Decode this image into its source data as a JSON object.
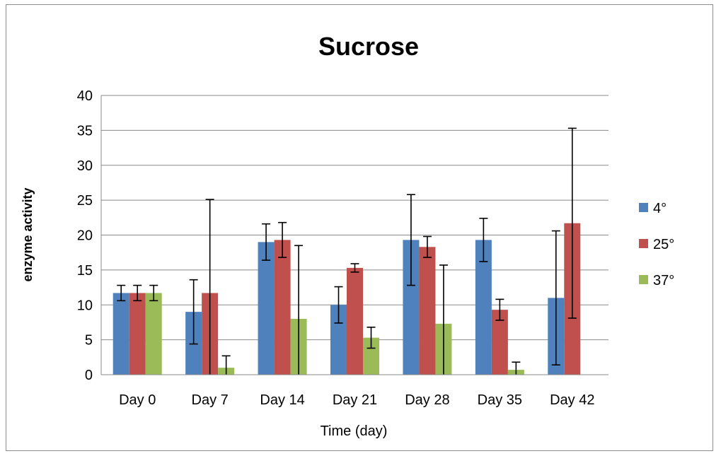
{
  "chart_data": {
    "type": "bar",
    "title": "Sucrose",
    "xlabel": "Time (day)",
    "ylabel": "enzyme activity",
    "ylim": [
      0,
      40
    ],
    "yticks": [
      0,
      5,
      10,
      15,
      20,
      25,
      30,
      35,
      40
    ],
    "grid": true,
    "legend_position": "right",
    "categories": [
      "Day 0",
      "Day 7",
      "Day 14",
      "Day 21",
      "Day 28",
      "Day 35",
      "Day 42"
    ],
    "series": [
      {
        "name": "4°",
        "color": "#4F81BD",
        "values": [
          11.7,
          9.0,
          19.0,
          10.0,
          19.3,
          19.3,
          11.0
        ],
        "errors": [
          1.1,
          4.6,
          2.6,
          2.6,
          6.5,
          3.1,
          9.6
        ]
      },
      {
        "name": "25°",
        "color": "#C0504D",
        "values": [
          11.7,
          11.7,
          19.3,
          15.3,
          18.3,
          9.3,
          21.7
        ],
        "errors": [
          1.1,
          13.4,
          2.5,
          0.6,
          1.5,
          1.5,
          13.6
        ]
      },
      {
        "name": "37°",
        "color": "#9BBB59",
        "values": [
          11.7,
          1.0,
          8.0,
          5.3,
          7.3,
          0.7,
          0.0
        ],
        "errors": [
          1.1,
          1.7,
          10.5,
          1.5,
          8.4,
          1.1,
          0.0
        ]
      }
    ]
  }
}
